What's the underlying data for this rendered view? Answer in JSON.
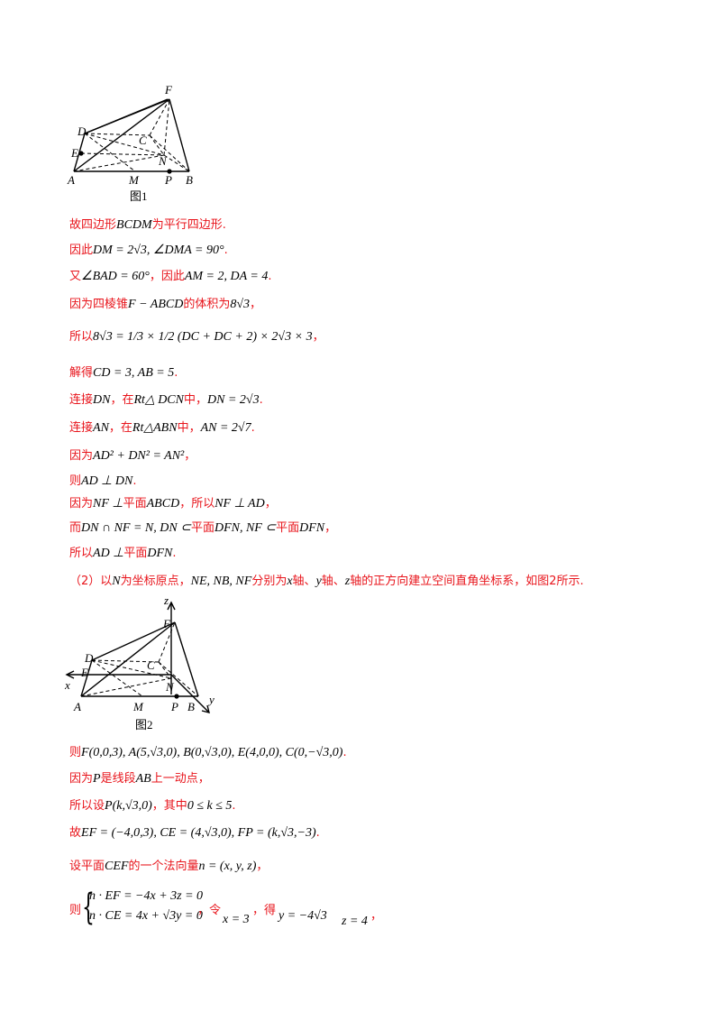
{
  "figure1": {
    "labels": {
      "F": "F",
      "D": "D",
      "C": "C",
      "E": "E",
      "N": "N",
      "A": "A",
      "M": "M",
      "P": "P",
      "B": "B"
    },
    "caption": "图1"
  },
  "figure2": {
    "labels": {
      "z": "z",
      "F": "F",
      "D": "D",
      "C": "C",
      "E": "E",
      "x": "x",
      "N": "N",
      "y": "y",
      "A": "A",
      "M": "M",
      "P": "P",
      "B": "B"
    },
    "caption": "图2"
  },
  "lines": {
    "l1": {
      "t1": "故四边形",
      "m1": "BCDM",
      "t2": "为平行四边形."
    },
    "l2": {
      "t1": "因此",
      "m1": "DM = 2√3, ∠DMA = 90°",
      "t2": "."
    },
    "l3": {
      "t1": "又",
      "m1": "∠BAD = 60°",
      "t2": "，因此",
      "m2": "AM = 2, DA = 4",
      "t3": "."
    },
    "l4": {
      "t1": "因为四棱锥",
      "m1": "F − ABCD",
      "t2": "的体积为",
      "m2": "8√3",
      "t3": "，"
    },
    "l5": {
      "t1": "所以",
      "m1": "8√3 = 1/3 × 1/2 (DC + DC + 2) × 2√3 × 3",
      "t2": "，"
    },
    "l6": {
      "t1": "解得",
      "m1": "CD = 3, AB = 5",
      "t2": "."
    },
    "l7": {
      "t1": "连接",
      "m1": "DN",
      "t2": "，在",
      "m2": "Rt△ DCN",
      "t3": "中，",
      "m3": "DN = 2√3",
      "t4": "."
    },
    "l8": {
      "t1": "连接",
      "m1": "AN",
      "t2": "，在",
      "m2": "Rt△ABN",
      "t3": "中，",
      "m3": "AN = 2√7",
      "t4": "."
    },
    "l9": {
      "t1": "因为",
      "m1": "AD² + DN² = AN²",
      "t2": "，"
    },
    "l10": {
      "t1": "则",
      "m1": "AD ⊥ DN",
      "t2": "."
    },
    "l11": {
      "t1": "因为",
      "m1": "NF ⊥",
      "t2": "平面",
      "m2": "ABCD",
      "t3": "，所以",
      "m3": "NF ⊥ AD",
      "t4": "，"
    },
    "l12": {
      "t1": "而",
      "m1": "DN ∩ NF = N, DN ⊂",
      "t2": "平面",
      "m2": "DFN, NF ⊂",
      "t3": "平面",
      "m3": "DFN",
      "t4": "，"
    },
    "l13": {
      "t1": "所以",
      "m1": "AD ⊥",
      "t2": "平面",
      "m2": "DFN",
      "t3": "."
    },
    "l14": {
      "t1": "（2）以",
      "m1": "N",
      "t2": "为坐标原点，",
      "m2": "NE, NB, NF",
      "t3": "分别为",
      "m3": "x",
      "t4": "轴、",
      "m4": "y",
      "t5": "轴、",
      "m5": "z",
      "t6": "轴的正方向建立空间直角坐标系，如图2所示."
    },
    "l15": {
      "t1": "则",
      "m1": "F(0,0,3), A(5,√3,0), B(0,√3,0), E(4,0,0), C(0,−√3,0)",
      "t2": "."
    },
    "l16": {
      "t1": "因为",
      "m1": "P",
      "t2": "是线段",
      "m2": "AB",
      "t3": "上一动点，"
    },
    "l17": {
      "t1": "所以设",
      "m1": "P(k,√3,0)",
      "t2": "，其中",
      "m2": "0 ≤ k ≤ 5",
      "t3": "."
    },
    "l18": {
      "t1": "故",
      "m1": "EF = (−4,0,3), CE = (4,√3,0), FP = (k,√3,−3)",
      "t2": "."
    },
    "l19": {
      "t1": "设平面",
      "m1": "CEF",
      "t2": "的一个法向量",
      "m2": "n = (x, y, z)",
      "t3": "，"
    },
    "l20": {
      "t1": "则",
      "eq1": "n · EF = −4x + 3z = 0",
      "eq2": "n · CE = 4x + √3y = 0",
      "t2": "，令",
      "m1": "x = 3",
      "t3": "，得",
      "m2": "y = −4√3",
      "m3": "z = 4",
      "t4": "，"
    }
  }
}
